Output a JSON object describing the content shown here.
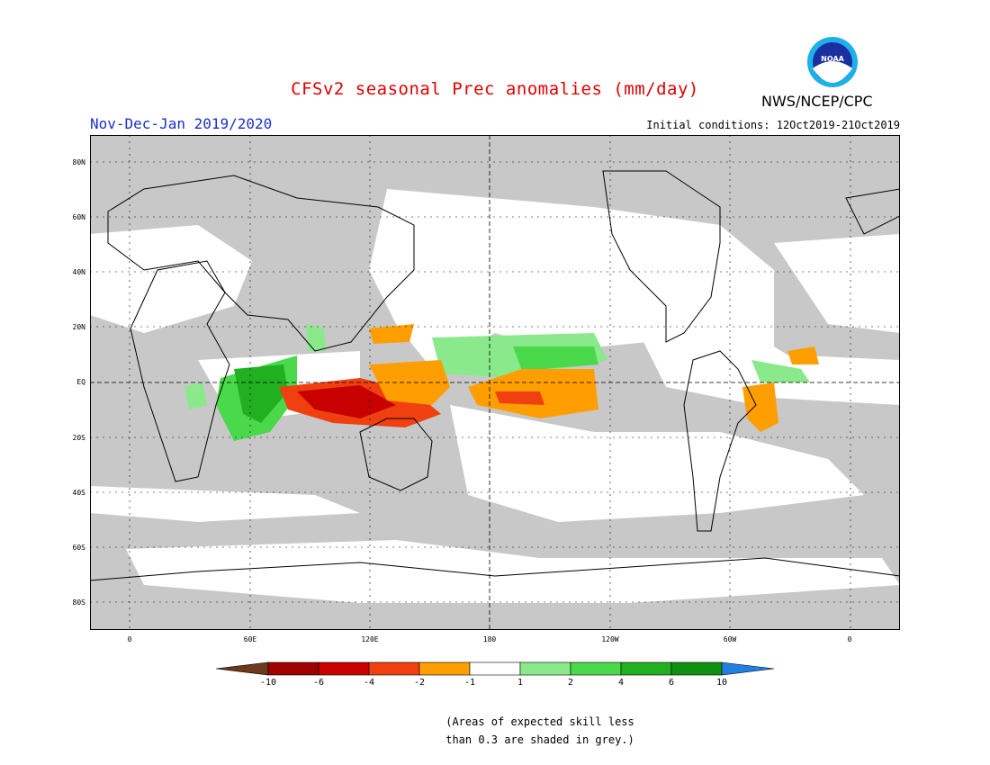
{
  "header": {
    "title": "CFSv2 seasonal Prec anomalies (mm/day)",
    "agency": "NWS/NCEP/CPC",
    "logo_text": "NOAA",
    "period": "Nov-Dec-Jan 2019/2020",
    "initial_conditions": "Initial conditions: 12Oct2019-21Oct2019"
  },
  "axes": {
    "lat_labels": [
      "80N",
      "60N",
      "40N",
      "20N",
      "EQ",
      "20S",
      "40S",
      "60S",
      "80S"
    ],
    "lon_labels": [
      "0",
      "60E",
      "120E",
      "180",
      "120W",
      "60W",
      "0"
    ]
  },
  "colorbar": {
    "ticks": [
      "-10",
      "-6",
      "-4",
      "-2",
      "-1",
      "1",
      "2",
      "4",
      "6",
      "10"
    ],
    "colors": [
      "#6b3a1c",
      "#a00000",
      "#c80000",
      "#f04010",
      "#ff9e00",
      "#ffffff",
      "#8ae98a",
      "#4ad94a",
      "#20b020",
      "#109010",
      "#2080e0"
    ]
  },
  "note": {
    "line1": "(Areas of expected skill less",
    "line2": "than 0.3 are shaded in grey.)"
  },
  "palette": {
    "grey_mask": "#c8c8c8",
    "ocean_unmasked": "#ffffff",
    "red_title": "#e00000",
    "blue_period": "#1a2fd0"
  }
}
